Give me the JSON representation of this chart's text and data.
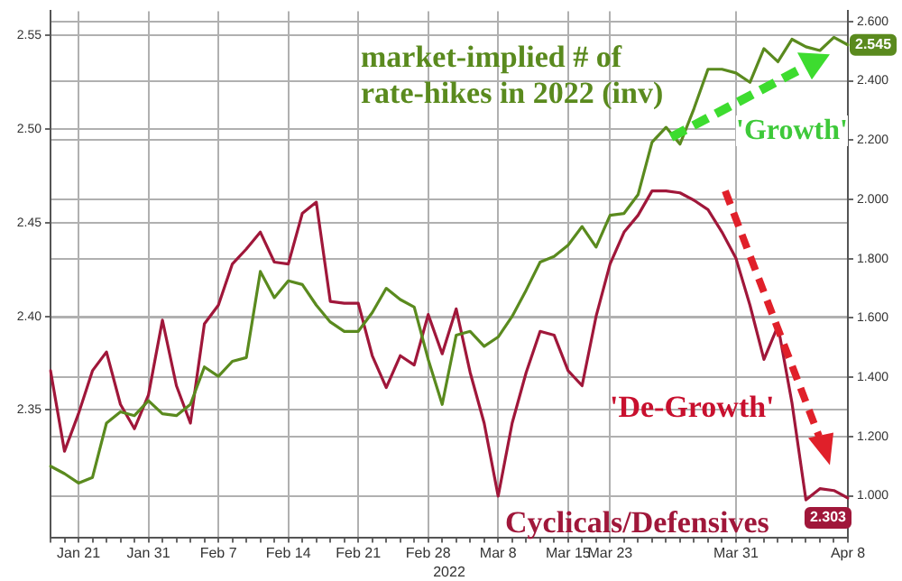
{
  "chart_data": {
    "type": "line",
    "xlabel": "2022",
    "categories": [
      null,
      null,
      "Jan 21",
      null,
      null,
      null,
      null,
      "Jan 31",
      null,
      null,
      null,
      null,
      "Feb 7",
      null,
      null,
      null,
      null,
      "Feb 14",
      null,
      null,
      null,
      null,
      "Feb 21",
      null,
      null,
      null,
      null,
      "Feb 28",
      null,
      null,
      null,
      null,
      "Mar 8",
      null,
      null,
      null,
      null,
      "Mar 15",
      null,
      null,
      "Mar 23",
      null,
      null,
      null,
      null,
      null,
      null,
      null,
      null,
      "Mar 31",
      null,
      null,
      null,
      null,
      null,
      null,
      null,
      "Apr 8"
    ],
    "series": [
      {
        "name": "market-implied # of rate-hikes in 2022 (inv)",
        "color": "#5a8a1e",
        "values": [
          2.32,
          2.316,
          2.311,
          2.314,
          2.343,
          2.349,
          2.347,
          2.355,
          2.348,
          2.347,
          2.353,
          2.373,
          2.368,
          2.376,
          2.378,
          2.424,
          2.41,
          2.419,
          2.417,
          2.406,
          2.397,
          2.392,
          2.392,
          2.402,
          2.415,
          2.409,
          2.405,
          2.377,
          2.353,
          2.39,
          2.392,
          2.384,
          2.389,
          2.4,
          2.414,
          2.429,
          2.432,
          2.438,
          2.448,
          2.437,
          2.454,
          2.455,
          2.465,
          2.493,
          2.501,
          2.492,
          2.511,
          2.532,
          2.532,
          2.53,
          2.525,
          2.543,
          2.536,
          2.548,
          2.544,
          2.542,
          2.549,
          2.545
        ],
        "value_labels": [
          null,
          null,
          null,
          null,
          null,
          null,
          null,
          null,
          null,
          null,
          null,
          null,
          null,
          null,
          null,
          null,
          null,
          null,
          null,
          null,
          null,
          null,
          null,
          null,
          null,
          null,
          null,
          null,
          null,
          null,
          null,
          null,
          null,
          null,
          null,
          null,
          null,
          null,
          null,
          null,
          null,
          null,
          null,
          null,
          null,
          null,
          null,
          null,
          null,
          null,
          null,
          null,
          null,
          null,
          null,
          null,
          null,
          "2.545"
        ]
      },
      {
        "name": "Cyclicals/Defensives",
        "color": "#a0173a",
        "values": [
          2.371,
          2.328,
          2.348,
          2.371,
          2.381,
          2.353,
          2.34,
          2.358,
          2.398,
          2.363,
          2.343,
          2.396,
          2.406,
          2.428,
          2.436,
          2.445,
          2.429,
          2.428,
          2.455,
          2.461,
          2.408,
          2.407,
          2.407,
          2.379,
          2.362,
          2.379,
          2.374,
          2.401,
          2.38,
          2.404,
          2.37,
          2.343,
          2.304,
          2.343,
          2.37,
          2.392,
          2.39,
          2.371,
          2.363,
          2.4,
          2.428,
          2.445,
          2.454,
          2.467,
          2.467,
          2.466,
          2.462,
          2.457,
          2.445,
          2.431,
          2.406,
          2.377,
          2.395,
          2.354,
          2.302,
          2.308,
          2.307,
          2.303
        ],
        "value_labels": [
          null,
          null,
          null,
          null,
          null,
          null,
          null,
          null,
          null,
          null,
          null,
          null,
          null,
          null,
          null,
          null,
          null,
          null,
          null,
          null,
          null,
          null,
          null,
          null,
          null,
          null,
          null,
          null,
          null,
          null,
          null,
          null,
          null,
          null,
          null,
          null,
          null,
          null,
          null,
          null,
          null,
          null,
          null,
          null,
          null,
          null,
          null,
          null,
          null,
          null,
          null,
          null,
          null,
          null,
          null,
          null,
          null,
          "2.303"
        ]
      }
    ],
    "ylim": [
      2.282,
      2.563
    ],
    "yticks": [
      {
        "value": 2.35,
        "label": "2.35"
      },
      {
        "value": 2.4,
        "label": "2.40"
      },
      {
        "value": 2.45,
        "label": "2.45"
      },
      {
        "value": 2.5,
        "label": "2.50"
      },
      {
        "value": 2.55,
        "label": "2.55"
      }
    ],
    "y2lim": [
      0.86,
      2.635
    ],
    "y2ticks": [
      {
        "value": 1,
        "label": "1.000"
      },
      {
        "value": 1.2,
        "label": "1.200"
      },
      {
        "value": 1.4,
        "label": "1.400"
      },
      {
        "value": 1.6,
        "label": "1.600"
      },
      {
        "value": 1.8,
        "label": "1.800"
      },
      {
        "value": 2,
        "label": "2.000"
      },
      {
        "value": 2.2,
        "label": "2.200"
      },
      {
        "value": 2.4,
        "label": "2.400"
      },
      {
        "value": 2.6,
        "label": "2.600"
      }
    ],
    "grid": true,
    "legend": "bottom right",
    "annotations": [
      {
        "text": "'Growth'",
        "y": 2.54
      },
      "'De-Growth'"
    ]
  }
}
